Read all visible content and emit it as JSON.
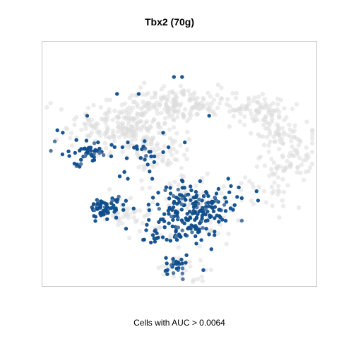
{
  "chart_data": {
    "type": "scatter",
    "title": "Tbx2 (70g)",
    "xlabel": "Cells with AUC > 0.0064",
    "ylabel": "",
    "grid": false,
    "legend": "none",
    "axes": {
      "ticks": false,
      "tick_labels": false
    },
    "colors": {
      "background_cells": "#dcdcdc",
      "high_auc_cells": "#0d4d8c",
      "frame": "#c8c8c8"
    },
    "series": [
      {
        "name": "",
        "role": "all cells (low AUC)",
        "color": "#dcdcdc",
        "clusters": [
          {
            "cx": 0.52,
            "cy": 0.75,
            "sx": 0.085,
            "sy": 0.035,
            "n": 130
          },
          {
            "cx": 0.78,
            "cy": 0.72,
            "sx": 0.07,
            "sy": 0.035,
            "n": 90
          },
          {
            "cx": 0.88,
            "cy": 0.62,
            "sx": 0.045,
            "sy": 0.03,
            "n": 50
          },
          {
            "cx": 0.34,
            "cy": 0.69,
            "sx": 0.06,
            "sy": 0.06,
            "n": 110
          },
          {
            "cx": 0.23,
            "cy": 0.64,
            "sx": 0.09,
            "sy": 0.05,
            "n": 110
          },
          {
            "cx": 0.42,
            "cy": 0.55,
            "sx": 0.06,
            "sy": 0.07,
            "n": 80
          },
          {
            "cx": 0.93,
            "cy": 0.52,
            "sx": 0.04,
            "sy": 0.04,
            "n": 40
          },
          {
            "cx": 0.85,
            "cy": 0.43,
            "sx": 0.05,
            "sy": 0.06,
            "n": 45
          },
          {
            "cx": 0.58,
            "cy": 0.33,
            "sx": 0.09,
            "sy": 0.07,
            "n": 80
          },
          {
            "cx": 0.3,
            "cy": 0.3,
            "sx": 0.06,
            "sy": 0.04,
            "n": 50
          },
          {
            "cx": 0.52,
            "cy": 0.08,
            "sx": 0.06,
            "sy": 0.04,
            "n": 30
          }
        ]
      },
      {
        "name": "",
        "role": "cells with AUC > 0.0064",
        "color": "#0d4d8c",
        "clusters": [
          {
            "cx": 0.55,
            "cy": 0.3,
            "sx": 0.075,
            "sy": 0.06,
            "n": 200
          },
          {
            "cx": 0.22,
            "cy": 0.32,
            "sx": 0.035,
            "sy": 0.025,
            "n": 65
          },
          {
            "cx": 0.16,
            "cy": 0.54,
            "sx": 0.055,
            "sy": 0.025,
            "n": 45
          },
          {
            "cx": 0.36,
            "cy": 0.55,
            "sx": 0.04,
            "sy": 0.03,
            "n": 20
          },
          {
            "cx": 0.42,
            "cy": 0.21,
            "sx": 0.035,
            "sy": 0.02,
            "n": 18
          },
          {
            "cx": 0.5,
            "cy": 0.08,
            "sx": 0.035,
            "sy": 0.025,
            "n": 26
          }
        ],
        "extra_points": [
          [
            0.05,
            0.64
          ],
          [
            0.07,
            0.63
          ],
          [
            0.16,
            0.7
          ],
          [
            0.27,
            0.79
          ],
          [
            0.35,
            0.79
          ],
          [
            0.48,
            0.86
          ],
          [
            0.51,
            0.86
          ],
          [
            0.61,
            0.7
          ],
          [
            0.44,
            0.63
          ],
          [
            0.46,
            0.57
          ],
          [
            0.52,
            0.59
          ],
          [
            0.31,
            0.59
          ],
          [
            0.29,
            0.57
          ],
          [
            0.25,
            0.58
          ],
          [
            0.2,
            0.59
          ],
          [
            0.12,
            0.6
          ],
          [
            0.4,
            0.44
          ],
          [
            0.39,
            0.47
          ],
          [
            0.79,
            0.35
          ],
          [
            0.69,
            0.41
          ],
          [
            0.73,
            0.36
          ],
          [
            0.28,
            0.45
          ],
          [
            0.31,
            0.44
          ],
          [
            0.38,
            0.25
          ]
        ]
      }
    ]
  }
}
